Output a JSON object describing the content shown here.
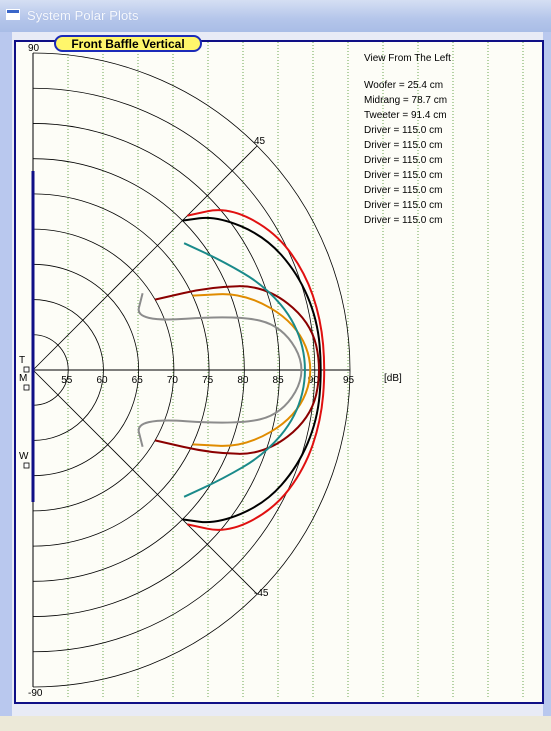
{
  "window": {
    "title": "System Polar Plots",
    "icon": "window-icon"
  },
  "chart_data": {
    "type": "polar",
    "title": "Front Baffle Vertical",
    "view_label": "View From The Left",
    "unit_label": "[dB]",
    "radial_ticks": [
      "55",
      "60",
      "65",
      "70",
      "75",
      "80",
      "85",
      "90",
      "95"
    ],
    "radial_range": [
      50,
      95
    ],
    "angle_labels": {
      "top": "90",
      "upper": "45",
      "lower": "-45",
      "bottom": "-90"
    },
    "driver_markers": [
      "T",
      "M",
      "W"
    ],
    "drivers": [
      {
        "name": "Woofer",
        "position": "25.4 cm"
      },
      {
        "name": "Midrang",
        "position": "78.7 cm"
      },
      {
        "name": "Tweeter",
        "position": "91.4 cm"
      },
      {
        "name": "Driver",
        "position": "115.0 cm"
      },
      {
        "name": "Driver",
        "position": "115.0 cm"
      },
      {
        "name": "Driver",
        "position": "115.0 cm"
      },
      {
        "name": "Driver",
        "position": "115.0 cm"
      },
      {
        "name": "Driver",
        "position": "115.0 cm"
      },
      {
        "name": "Driver",
        "position": "115.0 cm"
      },
      {
        "name": "Driver",
        "position": "115.0 cm"
      }
    ],
    "series_colors": [
      "#000000",
      "#e01010",
      "#8b0000",
      "#e08c00",
      "#1a8a8a",
      "#8c8c8c"
    ],
    "series": [
      {
        "color": "#000000",
        "angles": [
          45,
          40,
          30,
          20,
          10,
          0,
          -10,
          -20,
          -30,
          -40,
          -45
        ],
        "db": [
          80,
          84,
          88,
          90,
          91,
          91,
          91,
          90,
          88,
          84,
          80
        ]
      },
      {
        "color": "#e01010",
        "angles": [
          45,
          40,
          30,
          20,
          10,
          0,
          -10,
          -20,
          -30,
          -40,
          -45
        ],
        "db": [
          81,
          86,
          89.5,
          91,
          91.5,
          91.5,
          91.5,
          91,
          89.5,
          86,
          81
        ]
      },
      {
        "color": "#8b0000",
        "angles": [
          30,
          25,
          20,
          10,
          0,
          -10,
          -20,
          -25,
          -30
        ],
        "db": [
          70,
          78,
          85,
          90,
          91,
          90,
          85,
          78,
          70
        ]
      },
      {
        "color": "#e08c00",
        "angles": [
          25,
          20,
          10,
          0,
          -10,
          -20,
          -25
        ],
        "db": [
          75,
          82,
          88,
          90,
          88,
          82,
          75
        ]
      },
      {
        "color": "#1a8a8a",
        "angles": [
          40,
          30,
          20,
          10,
          0,
          -10,
          -20,
          -30,
          -40
        ],
        "db": [
          78,
          81,
          85,
          88,
          89,
          88,
          85,
          81,
          78
        ]
      },
      {
        "color": "#8c8c8c",
        "angles": [
          35,
          25,
          15,
          10,
          0,
          -10,
          -15,
          -25,
          -35
        ],
        "db": [
          69,
          66,
          80,
          86,
          89,
          86,
          80,
          66,
          69
        ]
      }
    ]
  }
}
